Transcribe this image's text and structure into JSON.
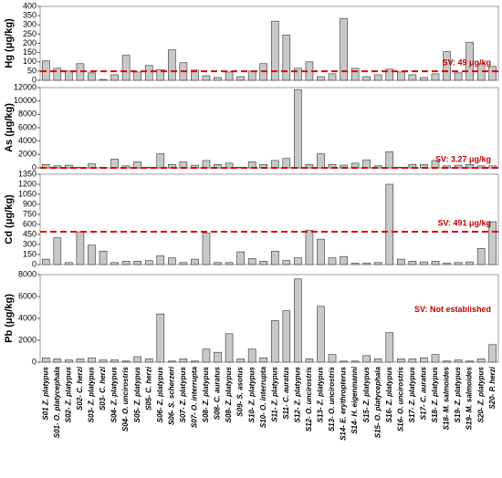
{
  "chart_data": [
    {
      "type": "bar",
      "ylabel": "Hg (μg/kg)",
      "color": "#c8c8c8",
      "sv": 49,
      "sv_label": "SV: 49 μg/kg",
      "ylim": [
        0,
        400
      ],
      "yticks": [
        0,
        50,
        100,
        150,
        200,
        250,
        300,
        350,
        400
      ],
      "values": [
        105,
        65,
        50,
        90,
        40,
        5,
        30,
        135,
        45,
        80,
        58,
        165,
        95,
        55,
        25,
        15,
        45,
        20,
        50,
        90,
        320,
        245,
        65,
        100,
        20,
        35,
        335,
        65,
        20,
        30,
        60,
        45,
        30,
        15,
        35,
        155,
        40,
        205,
        90,
        75
      ]
    },
    {
      "type": "bar",
      "ylabel": "As (μg/kg)",
      "color": "#c8c8c8",
      "sv": 3.27,
      "sv_label": "SV: 3.27 μg/kg",
      "ylim": [
        0,
        12000
      ],
      "yticks": [
        0,
        2000,
        4000,
        6000,
        8000,
        10000,
        12000
      ],
      "values": [
        500,
        300,
        400,
        100,
        600,
        100,
        1300,
        300,
        900,
        100,
        2100,
        500,
        900,
        400,
        1100,
        500,
        700,
        100,
        900,
        500,
        1100,
        1400,
        11700,
        500,
        2100,
        500,
        400,
        700,
        1200,
        300,
        2400,
        100,
        500,
        500,
        1100,
        300,
        400,
        500,
        300,
        300
      ]
    },
    {
      "type": "bar",
      "ylabel": "Cd (μg/kg)",
      "color": "#c8c8c8",
      "sv": 491,
      "sv_label": "SV: 491 μg/kg",
      "ylim": [
        0,
        1350
      ],
      "yticks": [
        0,
        150,
        300,
        450,
        600,
        750,
        900,
        1050,
        1200,
        1350
      ],
      "values": [
        80,
        400,
        30,
        490,
        290,
        200,
        30,
        50,
        50,
        60,
        130,
        100,
        30,
        80,
        470,
        30,
        30,
        190,
        90,
        50,
        200,
        60,
        100,
        510,
        380,
        100,
        120,
        20,
        20,
        30,
        1200,
        80,
        50,
        40,
        50,
        20,
        30,
        40,
        240,
        640
      ]
    },
    {
      "type": "bar",
      "ylabel": "Pb (μg/kg)",
      "color": "#c8c8c8",
      "sv_label": "SV: Not established",
      "ylim": [
        0,
        8000
      ],
      "yticks": [
        0,
        2000,
        4000,
        6000,
        8000
      ],
      "values": [
        400,
        300,
        200,
        300,
        400,
        200,
        200,
        100,
        500,
        300,
        4400,
        100,
        300,
        100,
        1200,
        900,
        2600,
        300,
        1200,
        400,
        3800,
        4700,
        7600,
        300,
        5100,
        700,
        100,
        100,
        600,
        300,
        2700,
        300,
        300,
        400,
        700,
        100,
        200,
        100,
        300,
        1600
      ],
      "categories": [
        "S01 Z. platypus",
        "S01- O. platycephala",
        "S02- Z. platypus",
        "S02- C. herzi",
        "S03- Z. platypus",
        "S03- C. herzi",
        "S04- Z. platypus",
        "S04- O. uncirostris",
        "S05- Z. platypus",
        "S05- C. herzi",
        "S06- Z. platypus",
        "S06- S. scherzeri",
        "S07- Z. platypus",
        "S07- O. interrupta",
        "S08- Z. platypus",
        "S08- C. auratus",
        "S08- Z. platypus",
        "S09- S. asotus",
        "S10- Z. platypus",
        "S10- O. interrupta",
        "S11- Z. platypus",
        "S11- C. auratus",
        "S12- Z. platypus",
        "S12- O. uncirostris",
        "S13- Z. platypus",
        "S13- O. uncirostris",
        "S14- E. erythropterus",
        "S14- H. eigenmanni",
        "S15- Z. platypus",
        "S15- O. platycephala",
        "S16- Z. platypus",
        "S16- O. uncirostris",
        "S17- Z. platypus",
        "S17- C. auratus",
        "S18- Z. platypus",
        "S18- M. salmoides",
        "S19- Z. platypus",
        "S19- M. salmoides",
        "S20- Z. platypus",
        "S20- P. herzi"
      ]
    }
  ]
}
